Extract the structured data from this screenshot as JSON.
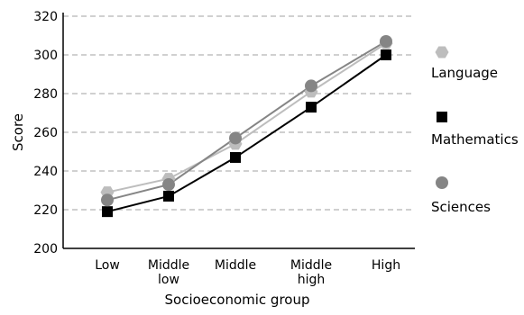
{
  "chart_data": {
    "type": "line",
    "categories": [
      "Low",
      "Middle low",
      "Middle",
      "Middle high",
      "High"
    ],
    "category_lines": [
      [
        "Low"
      ],
      [
        "Middle",
        "low"
      ],
      [
        "Middle"
      ],
      [
        "Middle",
        "high"
      ],
      [
        "High"
      ]
    ],
    "xlabel": "Socioeconomic group",
    "ylabel": "Score",
    "ylim": [
      200,
      320
    ],
    "yticks": [
      200,
      220,
      240,
      260,
      280,
      300,
      320
    ],
    "grid": "horizontal dashed",
    "legend_position": "right",
    "series": [
      {
        "name": "Language",
        "values": [
          229,
          236,
          254,
          281,
          306
        ],
        "marker": "hexagon",
        "color": "#bdbdbd"
      },
      {
        "name": "Mathematics",
        "values": [
          219,
          227,
          247,
          273,
          300
        ],
        "marker": "square",
        "color": "#000000"
      },
      {
        "name": "Sciences",
        "values": [
          225,
          233,
          257,
          284,
          307
        ],
        "marker": "circle",
        "color": "#858585"
      }
    ]
  }
}
